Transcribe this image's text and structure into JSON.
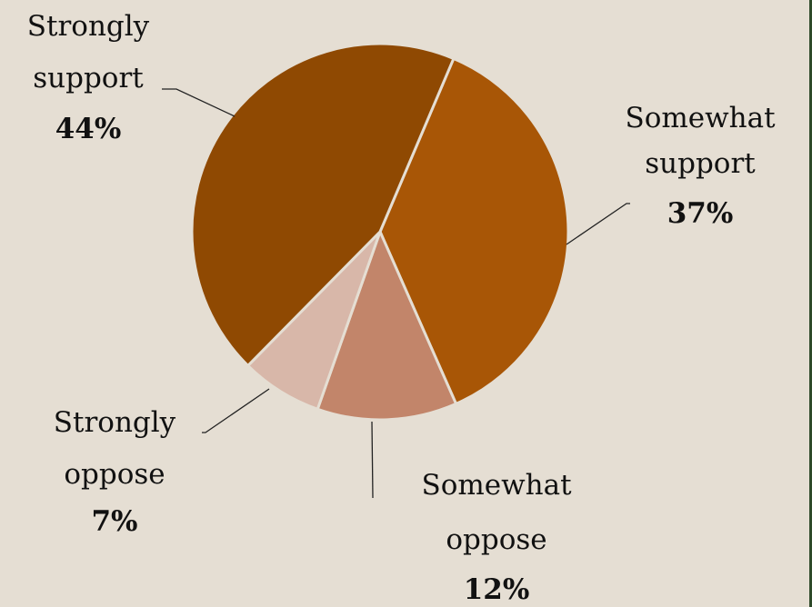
{
  "chart_data": {
    "type": "pie",
    "slices": [
      {
        "label_lines": [
          "Somewhat",
          "support"
        ],
        "percent_label": "37%",
        "value": 37,
        "color": "#a85606"
      },
      {
        "label_lines": [
          "Somewhat",
          "oppose"
        ],
        "percent_label": "12%",
        "value": 12,
        "color": "#c2856a"
      },
      {
        "label_lines": [
          "Strongly",
          "oppose"
        ],
        "percent_label": "7%",
        "value": 7,
        "color": "#d8b7a9"
      },
      {
        "label_lines": [
          "Strongly",
          "support"
        ],
        "percent_label": "44%",
        "value": 44,
        "color": "#8f4902"
      }
    ],
    "legend": "none"
  }
}
